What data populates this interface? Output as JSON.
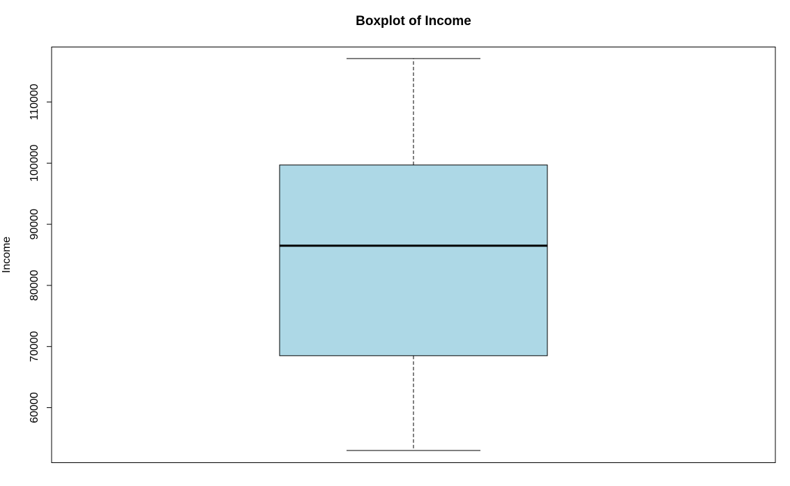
{
  "chart_data": {
    "type": "boxplot",
    "title": "Boxplot of Income",
    "xlabel": "",
    "ylabel": "Income",
    "ylim": [
      51000,
      119000
    ],
    "yticks": [
      60000,
      70000,
      80000,
      90000,
      100000,
      110000
    ],
    "ytick_labels": [
      "60000",
      "70000",
      "80000",
      "90000",
      "100000",
      "110000"
    ],
    "box": {
      "min": 53000,
      "q1": 68500,
      "median": 86500,
      "q3": 99700,
      "max": 117100
    },
    "grid": false,
    "colors": {
      "box_fill": "#add8e6",
      "stroke": "#000000"
    }
  }
}
